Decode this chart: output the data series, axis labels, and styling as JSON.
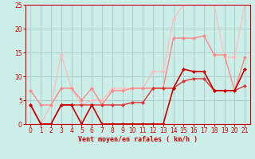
{
  "background_color": "#cceee8",
  "grid_color": "#aacccc",
  "xlim": [
    -0.5,
    21.5
  ],
  "ylim": [
    0,
    25
  ],
  "xticks": [
    0,
    1,
    2,
    3,
    4,
    5,
    6,
    7,
    8,
    9,
    10,
    11,
    12,
    13,
    14,
    15,
    16,
    17,
    18,
    19,
    20,
    21
  ],
  "yticks": [
    0,
    5,
    10,
    15,
    20,
    25
  ],
  "xlabel": "Vent moyen/en rafales ( km/h )",
  "xlabel_color": "#cc0000",
  "tick_color": "#cc0000",
  "axis_color": "#cc0000",
  "series": [
    {
      "x": [
        0,
        1,
        2,
        3,
        4,
        5,
        6,
        7,
        8,
        9,
        10,
        11,
        12,
        13,
        14,
        15,
        16,
        17,
        18,
        19,
        20,
        21
      ],
      "y": [
        4,
        0,
        0,
        4,
        4,
        0,
        4,
        0,
        0,
        0,
        0,
        0,
        0,
        0,
        7.5,
        11.5,
        11,
        11,
        7,
        7,
        7,
        11.5
      ],
      "color": "#cc0000",
      "linewidth": 1.2,
      "marker": "D",
      "markersize": 2.0,
      "zorder": 5
    },
    {
      "x": [
        0,
        1,
        2,
        3,
        4,
        5,
        6,
        7,
        8,
        9,
        10,
        11,
        12,
        13,
        14,
        15,
        16,
        17,
        18,
        19,
        20,
        21
      ],
      "y": [
        4,
        0,
        0,
        4,
        4,
        4,
        4,
        4,
        4,
        4,
        4.5,
        4.5,
        7.5,
        7.5,
        7.5,
        9,
        9.5,
        9.5,
        7,
        7,
        7,
        8
      ],
      "color": "#dd3333",
      "linewidth": 1.0,
      "marker": "D",
      "markersize": 2.0,
      "zorder": 4
    },
    {
      "x": [
        0,
        1,
        2,
        3,
        4,
        5,
        6,
        7,
        8,
        9,
        10,
        11,
        12,
        13,
        14,
        15,
        16,
        17,
        18,
        19,
        20,
        21
      ],
      "y": [
        7,
        4,
        4,
        7.5,
        7.5,
        5,
        7.5,
        4,
        7,
        7,
        7.5,
        7.5,
        7.5,
        7.5,
        18,
        18,
        18,
        18.5,
        14.5,
        14.5,
        7,
        14
      ],
      "color": "#ff8888",
      "linewidth": 1.0,
      "marker": "D",
      "markersize": 2.0,
      "zorder": 3
    },
    {
      "x": [
        0,
        1,
        2,
        3,
        4,
        5,
        6,
        7,
        8,
        9,
        10,
        11,
        12,
        13,
        14,
        15,
        16,
        17,
        18,
        19,
        20,
        21
      ],
      "y": [
        4,
        0,
        4,
        14.5,
        7.5,
        4,
        5,
        5,
        7.5,
        7.5,
        7.5,
        7.5,
        11,
        11,
        22,
        25,
        25,
        25,
        25,
        14,
        14,
        25
      ],
      "color": "#ffbbbb",
      "linewidth": 0.9,
      "marker": "D",
      "markersize": 2.0,
      "zorder": 2
    }
  ]
}
